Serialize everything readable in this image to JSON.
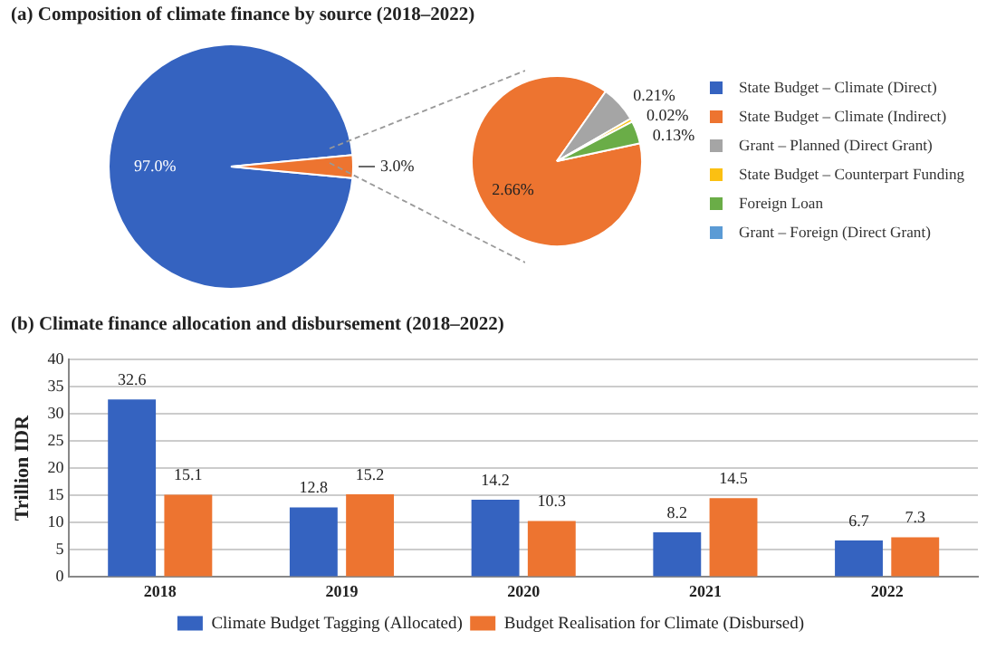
{
  "chart_data": [
    {
      "type": "pie",
      "title": "(a) Composition of climate finance by source (2018–2022)",
      "categories": [
        "State Budget – Climate (Direct)",
        null
      ],
      "values": [
        97.0,
        3.0
      ],
      "colors": [
        "#3563c0",
        "#ed7430"
      ],
      "value_labels": [
        "97.0%",
        "3.0%"
      ],
      "legend": "right"
    },
    {
      "type": "pie",
      "categories": [
        "State Budget – Climate (Indirect)",
        "Grant – Planned (Direct Grant)",
        "State Budget – Counterpart Funding",
        "Foreign Loan",
        "Grant – Foreign (Direct Grant)"
      ],
      "values": [
        2.66,
        0.21,
        0.02,
        0.13,
        0
      ],
      "colors": [
        "#ed7430",
        "#a5a5a5",
        "#fbc012",
        "#6aad47",
        "#5b9bd5"
      ],
      "value_labels": [
        "2.66%",
        "0.21%",
        "0.02%",
        "0.13%",
        null
      ],
      "legend": "right"
    },
    {
      "type": "bar",
      "title": "(b) Climate finance allocation and disbursement (2018–2022)",
      "ylabel": "Trillion IDR",
      "categories": [
        "2018",
        "2019",
        "2020",
        "2021",
        "2022"
      ],
      "series": [
        {
          "name": "Climate Budget Tagging (Allocated)",
          "color": "#3563c0",
          "values": [
            32.6,
            12.8,
            14.2,
            8.2,
            6.7
          ]
        },
        {
          "name": "Budget Realisation for Climate (Disbursed)",
          "color": "#ed7430",
          "values": [
            15.1,
            15.2,
            10.3,
            14.5,
            7.3
          ]
        }
      ],
      "ylim": [
        0,
        40
      ],
      "yticks": [
        0,
        5,
        10,
        15,
        20,
        25,
        30,
        35,
        40
      ],
      "grid": "y",
      "legend": "bottom",
      "data_labels": true
    }
  ]
}
